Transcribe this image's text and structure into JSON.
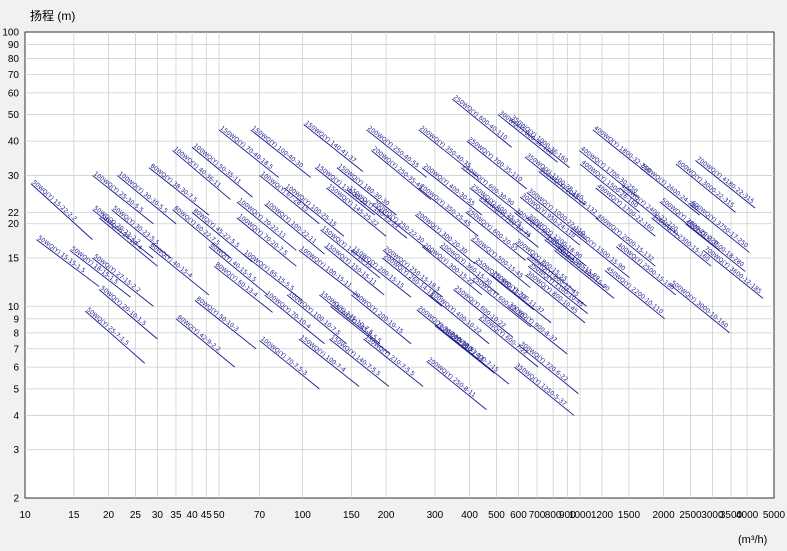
{
  "chart_data": {
    "type": "line",
    "title": "",
    "ylabel": "扬程 (m)",
    "xlabel": "(m³/h)",
    "x_scale": "log",
    "y_scale": "log",
    "xlim": [
      10,
      5000
    ],
    "ylim": [
      2,
      100
    ],
    "grid": true,
    "x_ticks": [
      10,
      15,
      20,
      25,
      30,
      35,
      40,
      45,
      50,
      70,
      100,
      150,
      200,
      300,
      400,
      500,
      600,
      700,
      800,
      900,
      1000,
      1200,
      1500,
      2000,
      2500,
      3000,
      3500,
      4000,
      5000
    ],
    "y_ticks": [
      2,
      3,
      4,
      5,
      6,
      7,
      8,
      9,
      10,
      15,
      20,
      22,
      30,
      40,
      50,
      60,
      70,
      80,
      90,
      100
    ],
    "colors": {
      "model_line": "#1a1a8c",
      "model_text": "#1a1a8c",
      "grid": "#cfcfcf"
    },
    "models": [
      {
        "label": "50WQ(Y) 15-22-2.2",
        "x": [
          10.5,
          17.5
        ],
        "y": [
          28.0,
          17.5
        ]
      },
      {
        "label": "50WQ(Y) 15-15-1.5",
        "x": [
          11.0,
          18.5
        ],
        "y": [
          17.5,
          11.8
        ]
      },
      {
        "label": "50WQ(Y) 18-15-1.5",
        "x": [
          14.5,
          24.0
        ],
        "y": [
          16.0,
          10.8
        ]
      },
      {
        "label": "50WQ(Y) 20-10-1.5",
        "x": [
          18.5,
          30.0
        ],
        "y": [
          11.5,
          7.6
        ]
      },
      {
        "label": "50WQ(Y) 25-7-1.5",
        "x": [
          16.5,
          27.0
        ],
        "y": [
          9.6,
          6.2
        ]
      },
      {
        "label": "50WQ(Y) 20-22-2.2",
        "x": [
          17.5,
          29.0
        ],
        "y": [
          22.5,
          15.0
        ]
      },
      {
        "label": "50WQ(Y) 24-20-4",
        "x": [
          18.5,
          30.0
        ],
        "y": [
          21.0,
          14.0
        ]
      },
      {
        "label": "50WQ(Y) 27-15-2.2",
        "x": [
          17.5,
          29.0
        ],
        "y": [
          15.0,
          10.0
        ]
      },
      {
        "label": "100WQ(Y) 25-30-5.5",
        "x": [
          17.5,
          29.0
        ],
        "y": [
          30.0,
          20.0
        ]
      },
      {
        "label": "100WQ(Y) 30-30-5.5",
        "x": [
          21.5,
          35.0
        ],
        "y": [
          30.0,
          20.0
        ]
      },
      {
        "label": "50WQ(Y) 30-23-5.5",
        "x": [
          20.5,
          33.5
        ],
        "y": [
          22.5,
          15.0
        ]
      },
      {
        "label": "80WQ(Y) 40-15-4",
        "x": [
          28.0,
          46.0
        ],
        "y": [
          16.5,
          11.0
        ]
      },
      {
        "label": "80WQ(Y) 38-30-7.5",
        "x": [
          28.0,
          46.0
        ],
        "y": [
          32.0,
          21.5
        ]
      },
      {
        "label": "100WQ(Y) 40-36-11",
        "x": [
          34.0,
          55.0
        ],
        "y": [
          37.0,
          24.5
        ]
      },
      {
        "label": "100WQ(Y) 50-35-11",
        "x": [
          40.0,
          66.0
        ],
        "y": [
          38.0,
          25.0
        ]
      },
      {
        "label": "80WQ(Y) 60-22-7.5",
        "x": [
          34.0,
          55.0
        ],
        "y": [
          22.5,
          15.0
        ]
      },
      {
        "label": "80WQ(Y) 45-22-5.5",
        "x": [
          40.0,
          66.0
        ],
        "y": [
          22.0,
          14.5
        ]
      },
      {
        "label": "80WQ(Y) 40-15-5.5",
        "x": [
          46.0,
          75.0
        ],
        "y": [
          16.5,
          11.0
        ]
      },
      {
        "label": "80WQ(Y) 60-13-4",
        "x": [
          48.0,
          78.0
        ],
        "y": [
          14.0,
          9.5
        ]
      },
      {
        "label": "80WQ(Y) 50-10-3",
        "x": [
          41.0,
          68.0
        ],
        "y": [
          10.5,
          7.0
        ]
      },
      {
        "label": "80WQ(Y) 42-9-2.2",
        "x": [
          35.0,
          57.0
        ],
        "y": [
          9.0,
          6.0
        ]
      },
      {
        "label": "150WQ(Y) 70-40-18.5",
        "x": [
          50.0,
          82.0
        ],
        "y": [
          44.0,
          29.5
        ]
      },
      {
        "label": "150WQ(Y) 100-40-30",
        "x": [
          65.0,
          107.0
        ],
        "y": [
          44.0,
          29.5
        ]
      },
      {
        "label": "100WQ(Y) 67-28-15",
        "x": [
          70.0,
          115.0
        ],
        "y": [
          30.0,
          20.0
        ]
      },
      {
        "label": "100WQ(Y) 100-25-15",
        "x": [
          86.0,
          141.0
        ],
        "y": [
          27.0,
          18.0
        ]
      },
      {
        "label": "100WQ(Y) 70-22-11",
        "x": [
          58.0,
          95.0
        ],
        "y": [
          24.0,
          16.0
        ]
      },
      {
        "label": "100WQ(Y) 100-22-11",
        "x": [
          73.0,
          120.0
        ],
        "y": [
          23.5,
          15.5
        ]
      },
      {
        "label": "100WQ(Y) 70-20-7.5",
        "x": [
          58.0,
          95.0
        ],
        "y": [
          21.0,
          14.0
        ]
      },
      {
        "label": "100WQ(Y) 85-15-5.5",
        "x": [
          61.0,
          100.0
        ],
        "y": [
          15.5,
          10.5
        ]
      },
      {
        "label": "100WQ(Y) 70-10-4",
        "x": [
          73.0,
          120.0
        ],
        "y": [
          11.0,
          7.3
        ]
      },
      {
        "label": "100WQ(Y) 100-10-7.5",
        "x": [
          88.0,
          144.0
        ],
        "y": [
          11.0,
          7.3
        ]
      },
      {
        "label": "100WQ(Y) 100-15-11",
        "x": [
          97.0,
          160.0
        ],
        "y": [
          16.0,
          10.8
        ]
      },
      {
        "label": "100WQ(Y) 70-7.5-3",
        "x": [
          70.0,
          115.0
        ],
        "y": [
          7.5,
          5.0
        ]
      },
      {
        "label": "150WQ(Y) 100-7-4",
        "x": [
          97.0,
          160.0
        ],
        "y": [
          7.6,
          5.1
        ]
      },
      {
        "label": "150WQ(Y) 145-10-7.5",
        "x": [
          115.0,
          190.0
        ],
        "y": [
          11.0,
          7.3
        ]
      },
      {
        "label": "150WQ(Y) 140-7-5.5",
        "x": [
          125.0,
          205.0
        ],
        "y": [
          7.6,
          5.1
        ]
      },
      {
        "label": "150WQ(Y) 145-9-5.5",
        "x": [
          126.0,
          207.0
        ],
        "y": [
          10.0,
          6.7
        ]
      },
      {
        "label": "150WQ(Y) 140-41-37",
        "x": [
          101.0,
          165.0
        ],
        "y": [
          46.0,
          31.0
        ]
      },
      {
        "label": "150WQ(Y) 130-30-22",
        "x": [
          111.0,
          182.0
        ],
        "y": [
          32.0,
          21.5
        ]
      },
      {
        "label": "150WQ(Y) 180-30-30",
        "x": [
          133.0,
          218.0
        ],
        "y": [
          32.0,
          21.5
        ]
      },
      {
        "label": "150WQ(Y) 145-25-22",
        "x": [
          122.0,
          200.0
        ],
        "y": [
          27.0,
          18.0
        ]
      },
      {
        "label": "150WQ(Y) 180-25-22",
        "x": [
          145.0,
          238.0
        ],
        "y": [
          26.5,
          17.7
        ]
      },
      {
        "label": "150WQ(Y) 140-18-15",
        "x": [
          116.0,
          190.0
        ],
        "y": [
          19.0,
          12.7
        ]
      },
      {
        "label": "150WQ(Y) 150-15-11",
        "x": [
          120.0,
          197.0
        ],
        "y": [
          16.5,
          11.0
        ]
      },
      {
        "label": "150WQ(Y) 200-15-15",
        "x": [
          150.0,
          246.0
        ],
        "y": [
          16.0,
          10.8
        ]
      },
      {
        "label": "150WQ(Y) 210-7-5.5",
        "x": [
          166.0,
          272.0
        ],
        "y": [
          7.6,
          5.1
        ]
      },
      {
        "label": "200WQ(Y) 200-10-15",
        "x": [
          150.0,
          246.0
        ],
        "y": [
          11.0,
          7.3
        ]
      },
      {
        "label": "200WQ(Y) 250-15-18.5",
        "x": [
          195.0,
          320.0
        ],
        "y": [
          16.0,
          10.8
        ]
      },
      {
        "label": "200WQ(Y) 250-22-30",
        "x": [
          178.0,
          292.0
        ],
        "y": [
          23.5,
          15.7
        ]
      },
      {
        "label": "200WQ(Y) 260-14-15",
        "x": [
          194.0,
          318.0
        ],
        "y": [
          15.0,
          10.0
        ]
      },
      {
        "label": "200WQ(Y) 250-40-55",
        "x": [
          170.0,
          280.0
        ],
        "y": [
          44.0,
          29.5
        ]
      },
      {
        "label": "200WQ(Y) 250-35-45",
        "x": [
          177.0,
          290.0
        ],
        "y": [
          37.0,
          24.5
        ]
      },
      {
        "label": "200WQ(Y) 350-40-75",
        "x": [
          262.0,
          430.0
        ],
        "y": [
          44.0,
          29.5
        ]
      },
      {
        "label": "200WQ(Y) 400-30-55",
        "x": [
          270.0,
          443.0
        ],
        "y": [
          32.0,
          21.5
        ]
      },
      {
        "label": "200WQ(Y) 300-20-30",
        "x": [
          255.0,
          418.0
        ],
        "y": [
          21.5,
          14.3
        ]
      },
      {
        "label": "200WQ(Y) 350-25-45",
        "x": [
          262.0,
          430.0
        ],
        "y": [
          27.0,
          18.0
        ]
      },
      {
        "label": "200WQ(Y) 300-15-22",
        "x": [
          270.0,
          443.0
        ],
        "y": [
          16.5,
          11.0
        ]
      },
      {
        "label": "200WQ(Y) 360-15-30",
        "x": [
          312.0,
          512.0
        ],
        "y": [
          16.5,
          11.0
        ]
      },
      {
        "label": "200WQ(Y) 400-10-22",
        "x": [
          287.0,
          470.0
        ],
        "y": [
          11.0,
          7.3
        ]
      },
      {
        "label": "200WQ(Y) 300-10-18.5",
        "x": [
          258.0,
          423.0
        ],
        "y": [
          9.7,
          6.5
        ]
      },
      {
        "label": "200WQ(Y) 350-7-11",
        "x": [
          300.0,
          492.0
        ],
        "y": [
          8.5,
          5.7
        ]
      },
      {
        "label": "200WQ(Y) 400-7-15",
        "x": [
          338.0,
          555.0
        ],
        "y": [
          7.8,
          5.2
        ]
      },
      {
        "label": "200WQ(Y) 250-8-11",
        "x": [
          280.0,
          460.0
        ],
        "y": [
          6.3,
          4.2
        ]
      },
      {
        "label": "250WQ(Y) 600-40-110",
        "x": [
          346.0,
          567.0
        ],
        "y": [
          57.0,
          38.0
        ]
      },
      {
        "label": "250WQ(Y) 700-35-110",
        "x": [
          391.0,
          642.0
        ],
        "y": [
          40.0,
          26.8
        ]
      },
      {
        "label": "250WQ(Y) 600-30-90",
        "x": [
          374.0,
          614.0
        ],
        "y": [
          32.0,
          21.5
        ]
      },
      {
        "label": "250WQ(Y) 600-25-75",
        "x": [
          401.0,
          658.0
        ],
        "y": [
          27.0,
          18.0
        ]
      },
      {
        "label": "250WQ(Y) 700-22-75",
        "x": [
          432.0,
          708.0
        ],
        "y": [
          24.5,
          16.4
        ]
      },
      {
        "label": "250WQ(Y) 600-20-55",
        "x": [
          388.0,
          636.0
        ],
        "y": [
          22.0,
          14.7
        ]
      },
      {
        "label": "250WQ(Y) 500-15-45",
        "x": [
          404.0,
          662.0
        ],
        "y": [
          17.5,
          11.7
        ]
      },
      {
        "label": "250WQ(Y) 600-15-37",
        "x": [
          416.0,
          682.0
        ],
        "y": [
          14.5,
          9.7
        ]
      },
      {
        "label": "250WQ(Y) 700-11-37",
        "x": [
          480.0,
          787.0
        ],
        "y": [
          13.0,
          8.7
        ]
      },
      {
        "label": "250WQ(Y) 600-10-22",
        "x": [
          350.0,
          574.0
        ],
        "y": [
          11.5,
          7.7
        ]
      },
      {
        "label": "250WQ(Y) 600-7-22",
        "x": [
          431.0,
          707.0
        ],
        "y": [
          9.0,
          6.0
        ]
      },
      {
        "label": "250WQ(Y) 600-12-30",
        "x": [
          406.0,
          666.0
        ],
        "y": [
          12.5,
          8.4
        ]
      },
      {
        "label": "300WQ(Y) 800-36-160",
        "x": [
          506.0,
          830.0
        ],
        "y": [
          50.0,
          33.5
        ]
      },
      {
        "label": "300WQ(Y) 950-20-90",
        "x": [
          580.0,
          951.0
        ],
        "y": [
          22.0,
          14.7
        ]
      },
      {
        "label": "300WQ(Y) 950-24-110",
        "x": [
          609.0,
          999.0
        ],
        "y": [
          25.0,
          16.7
        ]
      },
      {
        "label": "300WQ(Y) 1200-18-90",
        "x": [
          643.0,
          1055.0
        ],
        "y": [
          21.0,
          14.0
        ]
      },
      {
        "label": "300WQ(Y) 1000-22-110",
        "x": [
          643.0,
          1055.0
        ],
        "y": [
          26.0,
          17.4
        ]
      },
      {
        "label": "300WQ(Y) 800-15-55",
        "x": [
          582.0,
          955.0
        ],
        "y": [
          17.0,
          11.4
        ]
      },
      {
        "label": "300WQ(Y) 800-12-45",
        "x": [
          643.0,
          1055.0
        ],
        "y": [
          15.0,
          10.0
        ]
      },
      {
        "label": "300WQ(Y) 900-8-37",
        "x": [
          548.0,
          899.0
        ],
        "y": [
          10.0,
          6.7
        ]
      },
      {
        "label": "300WQ(Y) 720-6-22",
        "x": [
          602.0,
          987.0
        ],
        "y": [
          7.2,
          4.8
        ]
      },
      {
        "label": "300WQ(Y) 800-10-45",
        "x": [
          636.0,
          1043.0
        ],
        "y": [
          13.0,
          8.7
        ]
      },
      {
        "label": "300WQ(Y) 1065-28-132",
        "x": [
          710.0,
          1165.0
        ],
        "y": [
          31.0,
          20.8
        ]
      },
      {
        "label": "350WQ(Y) 1000-36-160",
        "x": [
          559.0,
          917.0
        ],
        "y": [
          48.0,
          32.0
        ]
      },
      {
        "label": "350WQ(Y) 1100-28-160",
        "x": [
          633.0,
          1038.0
        ],
        "y": [
          35.0,
          23.5
        ]
      },
      {
        "label": "350WQ(Y) 1100-10-45",
        "x": [
          650.0,
          1066.0
        ],
        "y": [
          14.0,
          9.4
        ]
      },
      {
        "label": "350WQ(Y) 1500-15-90",
        "x": [
          745.0,
          1222.0
        ],
        "y": [
          17.5,
          11.7
        ]
      },
      {
        "label": "350WQ(Y) 1200-15-90",
        "x": [
          808.0,
          1325.0
        ],
        "y": [
          16.0,
          10.7
        ]
      },
      {
        "label": "350WQ(Y) 1250-5-37",
        "x": [
          580.0,
          951.0
        ],
        "y": [
          6.0,
          4.0
        ]
      },
      {
        "label": "400WQ(Y) 1700-30-250",
        "x": [
          994.0,
          1630.0
        ],
        "y": [
          37.0,
          24.8
        ]
      },
      {
        "label": "400WQ(Y) 1800-32-250",
        "x": [
          1111.0,
          1822.0
        ],
        "y": [
          44.0,
          29.5
        ]
      },
      {
        "label": "400WQ(Y) 1700-22-160",
        "x": [
          1139.0,
          1868.0
        ],
        "y": [
          27.0,
          18.0
        ]
      },
      {
        "label": "400WQ(Y) 2000-15-132",
        "x": [
          1139.0,
          1868.0
        ],
        "y": [
          21.0,
          14.0
        ]
      },
      {
        "label": "400WQ(Y) 1500-26-160",
        "x": [
          1000.0,
          1640.0
        ],
        "y": [
          33.0,
          22.0
        ]
      },
      {
        "label": "400WQ(Y) 1500-15-90",
        "x": [
          920.0,
          1509.0
        ],
        "y": [
          19.0,
          12.7
        ]
      },
      {
        "label": "400WQ(Y) 2500-15-160",
        "x": [
          1350.0,
          2214.0
        ],
        "y": [
          16.5,
          11.0
        ]
      },
      {
        "label": "450WQ(Y) 2200-10-110",
        "x": [
          1230.0,
          2017.0
        ],
        "y": [
          13.5,
          9.0
        ]
      },
      {
        "label": "400WQ(Y) 2400-22-220",
        "x": [
          1390.0,
          2280.0
        ],
        "y": [
          27.0,
          18.0
        ]
      },
      {
        "label": "500WQ(Y) 2600-24-280",
        "x": [
          1645.0,
          2698.0
        ],
        "y": [
          32.0,
          21.5
        ]
      },
      {
        "label": "500WQ(Y) 2300-15-160",
        "x": [
          1810.0,
          2968.0
        ],
        "y": [
          21.0,
          14.0
        ]
      },
      {
        "label": "500WQ(Y) 2600-20-220",
        "x": [
          1940.0,
          3182.0
        ],
        "y": [
          24.0,
          16.0
        ]
      },
      {
        "label": "600WQ(Y) 3000-22-315",
        "x": [
          2216.0,
          3634.0
        ],
        "y": [
          33.0,
          22.0
        ]
      },
      {
        "label": "600WQ(Y) 3750-17-250",
        "x": [
          2488.0,
          4080.0
        ],
        "y": [
          23.5,
          15.7
        ]
      },
      {
        "label": "600WQ(Y) 3500-18-280",
        "x": [
          2400.0,
          3936.0
        ],
        "y": [
          20.0,
          13.4
        ]
      },
      {
        "label": "700WQ(Y) 4180-22-315",
        "x": [
          2607.0,
          4275.0
        ],
        "y": [
          34.0,
          22.8
        ]
      },
      {
        "label": "700WQ(Y) 3600-12-185",
        "x": [
          2780.0,
          4560.0
        ],
        "y": [
          16.0,
          10.7
        ]
      },
      {
        "label": "500WQ(Y) 3000-10-160",
        "x": [
          2109.0,
          3459.0
        ],
        "y": [
          12.0,
          8.0
        ]
      }
    ]
  }
}
